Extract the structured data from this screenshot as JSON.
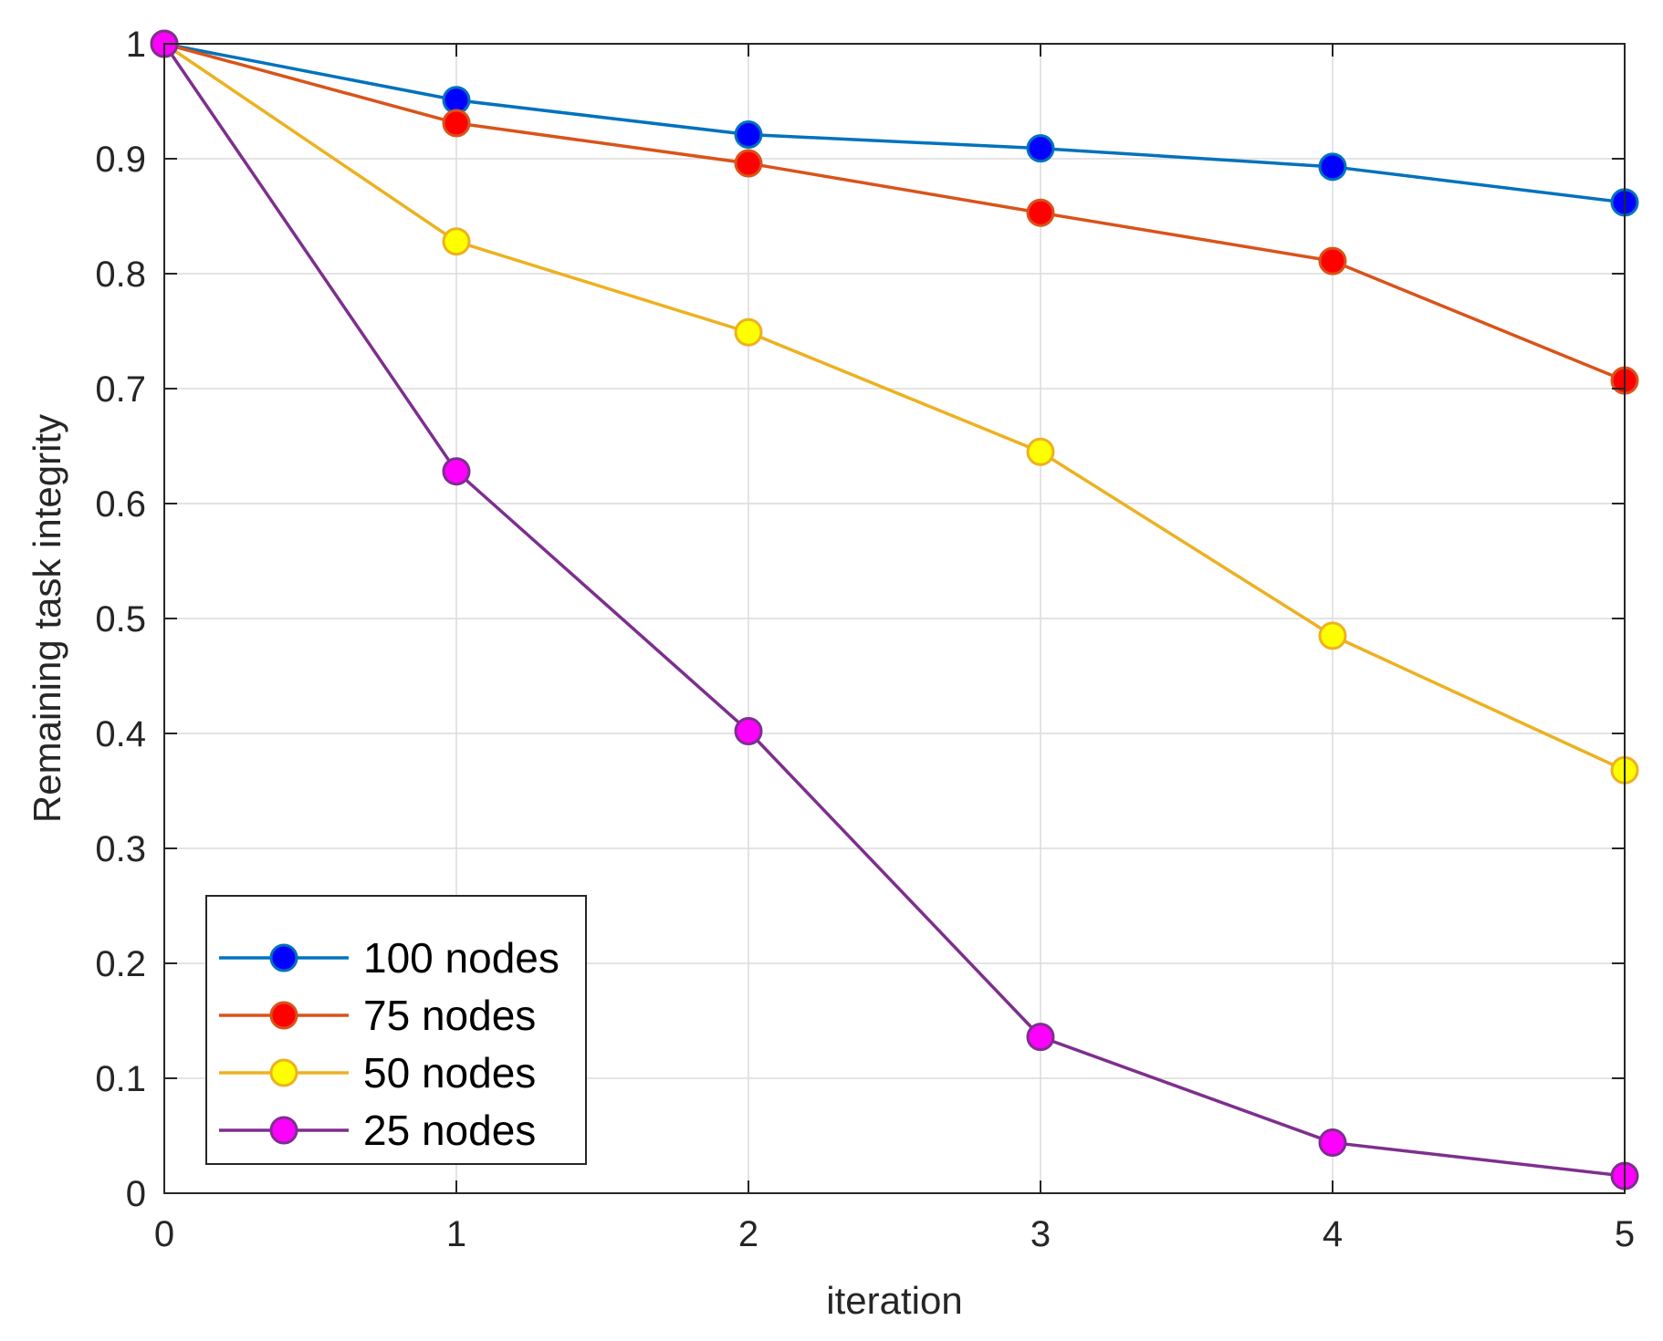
{
  "chart_data": {
    "type": "line",
    "title": "",
    "xlabel": "iteration",
    "ylabel": "Remaining task integrity",
    "x": [
      0,
      1,
      2,
      3,
      4,
      5
    ],
    "xlim": [
      0,
      5
    ],
    "ylim": [
      0,
      1
    ],
    "x_ticks": [
      "0",
      "1",
      "2",
      "3",
      "4",
      "5"
    ],
    "y_ticks": [
      "0",
      "0.1",
      "0.2",
      "0.3",
      "0.4",
      "0.5",
      "0.6",
      "0.7",
      "0.8",
      "0.9",
      "1"
    ],
    "grid": true,
    "legend_position": "bottom-left",
    "series": [
      {
        "name": "100 nodes",
        "line_color": "#0072BD",
        "marker_fill": "#0000FF",
        "values": [
          1.0,
          0.951,
          0.921,
          0.909,
          0.893,
          0.862
        ]
      },
      {
        "name": "75 nodes",
        "line_color": "#D95319",
        "marker_fill": "#FF0000",
        "values": [
          1.0,
          0.931,
          0.896,
          0.853,
          0.811,
          0.707
        ]
      },
      {
        "name": "50 nodes",
        "line_color": "#EDB120",
        "marker_fill": "#FFFF00",
        "values": [
          1.0,
          0.828,
          0.749,
          0.645,
          0.485,
          0.368
        ]
      },
      {
        "name": "25 nodes",
        "line_color": "#7E2F8E",
        "marker_fill": "#FF00FF",
        "values": [
          1.0,
          0.628,
          0.402,
          0.136,
          0.044,
          0.015
        ]
      }
    ]
  }
}
